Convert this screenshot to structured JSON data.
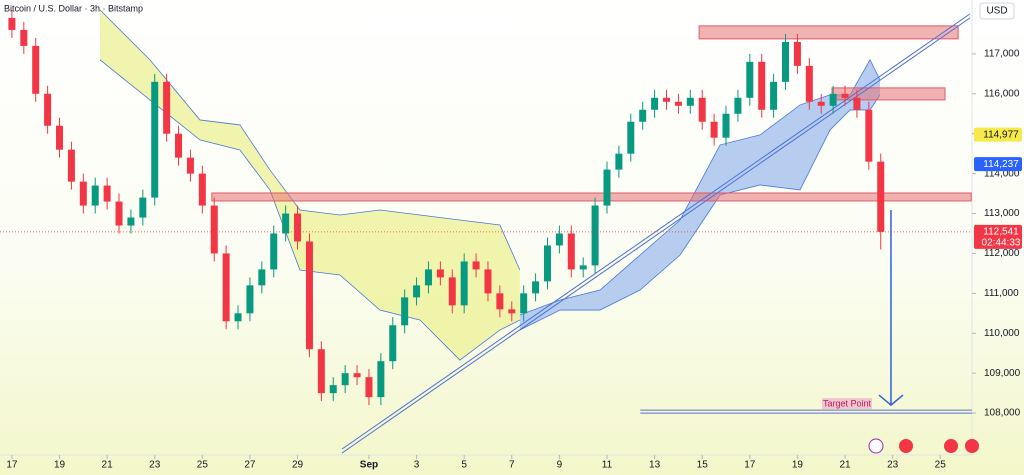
{
  "chart_data": {
    "type": "candlestick",
    "title": "Bitcoin / U.S. Dollar · 3h · Bitstamp",
    "currency": "USD",
    "up_color": "#089981",
    "down_color": "#f23645",
    "xlim": [
      -0.5,
      40.25
    ],
    "ylim": [
      106950,
      118350
    ],
    "xticks": [
      {
        "value": 0,
        "label": "17"
      },
      {
        "value": 2,
        "label": "19"
      },
      {
        "value": 4,
        "label": "21"
      },
      {
        "value": 6,
        "label": "23"
      },
      {
        "value": 8,
        "label": "25"
      },
      {
        "value": 10,
        "label": "27"
      },
      {
        "value": 12,
        "label": "29"
      },
      {
        "value": 15,
        "label": "Sep"
      },
      {
        "value": 17,
        "label": "3"
      },
      {
        "value": 19,
        "label": "5"
      },
      {
        "value": 21,
        "label": "7"
      },
      {
        "value": 23,
        "label": "9"
      },
      {
        "value": 25,
        "label": "11"
      },
      {
        "value": 27,
        "label": "13"
      },
      {
        "value": 29,
        "label": "15"
      },
      {
        "value": 31,
        "label": "17"
      },
      {
        "value": 33,
        "label": "19"
      },
      {
        "value": 35,
        "label": "21"
      },
      {
        "value": 37,
        "label": "23"
      },
      {
        "value": 39,
        "label": "25"
      }
    ],
    "yticks": [
      {
        "value": 108000,
        "label": "108,000"
      },
      {
        "value": 109000,
        "label": "109,000"
      },
      {
        "value": 110000,
        "label": "110,000"
      },
      {
        "value": 111000,
        "label": "111,000"
      },
      {
        "value": 112000,
        "label": "112,000"
      },
      {
        "value": 113000,
        "label": "113,000"
      },
      {
        "value": 114000,
        "label": "114,000"
      },
      {
        "value": 115000,
        "label": "115,000"
      },
      {
        "value": 116000,
        "label": "116,000"
      },
      {
        "value": 117000,
        "label": "117,000"
      }
    ],
    "x": [
      0,
      0.5,
      1,
      1.5,
      2,
      2.5,
      3,
      3.5,
      4,
      4.5,
      5,
      5.5,
      6,
      6.5,
      7,
      7.5,
      8,
      8.5,
      9,
      9.5,
      10,
      10.5,
      11,
      11.5,
      12,
      12.5,
      13,
      13.5,
      14,
      14.5,
      15,
      15.5,
      16,
      16.5,
      17,
      17.5,
      18,
      18.5,
      19,
      19.5,
      20,
      20.5,
      21,
      21.5,
      22,
      22.5,
      23,
      23.5,
      24,
      24.5,
      25,
      25.5,
      26,
      26.5,
      27,
      27.5,
      28,
      28.5,
      29,
      29.5,
      30,
      30.5,
      31,
      31.5,
      32,
      32.5,
      33,
      33.5,
      34,
      34.5,
      35,
      35.5,
      36,
      36.5
    ],
    "open": [
      117900,
      117600,
      117200,
      116000,
      115200,
      114600,
      113800,
      113200,
      113700,
      113300,
      112700,
      112900,
      113400,
      116300,
      115000,
      114400,
      114000,
      113200,
      112000,
      110300,
      110500,
      111200,
      111600,
      112500,
      113000,
      112300,
      109600,
      108500,
      108700,
      109000,
      108900,
      108400,
      109300,
      110200,
      110900,
      111200,
      111600,
      111400,
      110700,
      111800,
      111600,
      111000,
      110600,
      110500,
      111000,
      111300,
      112200,
      112500,
      111600,
      111700,
      113200,
      114100,
      114500,
      115300,
      115600,
      115900,
      115800,
      115700,
      115900,
      115300,
      114900,
      115500,
      115900,
      116800,
      115600,
      116300,
      117300,
      116700,
      115800,
      115700,
      116000,
      115900,
      115600,
      114300
    ],
    "high": [
      118100,
      117800,
      117400,
      116200,
      115400,
      114800,
      114000,
      113900,
      113900,
      113500,
      113100,
      113600,
      116500,
      116500,
      115200,
      114600,
      114200,
      113400,
      112200,
      110700,
      111400,
      111800,
      112700,
      113200,
      113200,
      112500,
      109800,
      108900,
      109200,
      109200,
      109100,
      109500,
      110400,
      111100,
      111400,
      111800,
      111800,
      111600,
      112000,
      112000,
      111800,
      111200,
      110800,
      111200,
      111500,
      112400,
      112700,
      112700,
      111900,
      113400,
      114300,
      114700,
      115500,
      115800,
      116100,
      116100,
      116000,
      116100,
      116100,
      115500,
      115700,
      116100,
      117000,
      117000,
      116500,
      117500,
      117500,
      116900,
      116000,
      116200,
      116200,
      116100,
      115800,
      114500
    ],
    "low": [
      117400,
      117000,
      115800,
      115000,
      114400,
      113600,
      113000,
      113000,
      113100,
      112500,
      112500,
      112700,
      113200,
      114800,
      114200,
      113800,
      113000,
      111800,
      110100,
      110100,
      110300,
      111000,
      111400,
      112300,
      112100,
      109400,
      108300,
      108300,
      108500,
      108700,
      108200,
      108200,
      109100,
      110000,
      110700,
      111000,
      111200,
      110500,
      110500,
      111400,
      110800,
      110400,
      110300,
      110300,
      110800,
      111100,
      112000,
      111400,
      111400,
      111500,
      113000,
      113900,
      114300,
      115100,
      115400,
      115600,
      115500,
      115500,
      115100,
      114700,
      114700,
      115300,
      115700,
      115400,
      115400,
      116100,
      116500,
      115600,
      115500,
      115500,
      115700,
      115400,
      114100,
      112100
    ],
    "close": [
      117600,
      117200,
      116000,
      115200,
      114600,
      113800,
      113200,
      113700,
      113300,
      112700,
      112900,
      113400,
      116300,
      115000,
      114400,
      114000,
      113200,
      112000,
      110300,
      110500,
      111200,
      111600,
      112500,
      113000,
      112300,
      109600,
      108500,
      108700,
      109000,
      108900,
      108400,
      109300,
      110200,
      110900,
      111200,
      111600,
      111400,
      110700,
      111800,
      111600,
      111000,
      110600,
      110500,
      111000,
      111300,
      112200,
      112500,
      111600,
      111700,
      113200,
      114100,
      114500,
      115300,
      115600,
      115900,
      115800,
      115700,
      115900,
      115300,
      114900,
      115500,
      115900,
      116800,
      115600,
      116300,
      117300,
      116700,
      115800,
      115700,
      116000,
      115900,
      115600,
      114300,
      112541
    ],
    "clouds": [
      {
        "color": "#eef2a0",
        "line_color": "#4a78d6",
        "x": [
          3.7,
          5.8,
          7.9,
          9.58,
          10.84,
          12.1,
          13.78,
          15.46,
          17.14,
          18.82,
          20.5,
          21.34
        ],
        "upper": [
          118103,
          116850,
          115345,
          115220,
          114092,
          113089,
          112964,
          113089,
          112964,
          112838,
          112713,
          111585
        ],
        "lower": [
          116850,
          115847,
          114844,
          114593,
          113591,
          111585,
          111460,
          110582,
          110332,
          109329,
          110081,
          110332
        ]
      },
      {
        "color": "#a9c4ee",
        "line_color": "#4a78d6",
        "x": [
          21.34,
          23.03,
          24.71,
          26.39,
          28.07,
          29.75,
          31.43,
          33.11,
          34.37,
          35.21,
          36.05,
          36.47
        ],
        "upper": [
          110457,
          110833,
          111084,
          111961,
          112838,
          114719,
          114969,
          115721,
          115972,
          115972,
          116850,
          116348
        ],
        "lower": [
          110081,
          110582,
          110582,
          111084,
          111961,
          113465,
          113716,
          113591,
          115095,
          115596,
          115596,
          115972
        ]
      }
    ],
    "zones": [
      {
        "x": [
          28.87,
          39.75
        ],
        "y": [
          117376,
          117702
        ]
      },
      {
        "x": [
          34.45,
          39.2
        ],
        "y": [
          115847,
          116148
        ]
      },
      {
        "x": [
          8.4,
          40.3
        ],
        "y": [
          113315,
          113515
        ]
      }
    ],
    "trendline": {
      "x": [
        13.87,
        40.25
      ],
      "y": [
        107000,
        117902
      ],
      "color": "#4a6fd6"
    },
    "target": {
      "text": "Target Point",
      "x": [
        26.4,
        40.5
      ],
      "value": 108075
    },
    "arrow": {
      "x": 36.93,
      "from": 113089,
      "to": 108200,
      "color": "#2f5fe0"
    },
    "price_labels": [
      {
        "value": 114977,
        "label": "114,977",
        "color": "#f5e94b",
        "text_color": "#131722"
      },
      {
        "value": 114237,
        "label": "114,237",
        "color": "#2962ff",
        "text_color": "#ffffff"
      },
      {
        "value": 112541,
        "label": "112,541",
        "color": "#f23645",
        "text_color": "#ffffff"
      }
    ],
    "countdown": "02:44:33"
  }
}
